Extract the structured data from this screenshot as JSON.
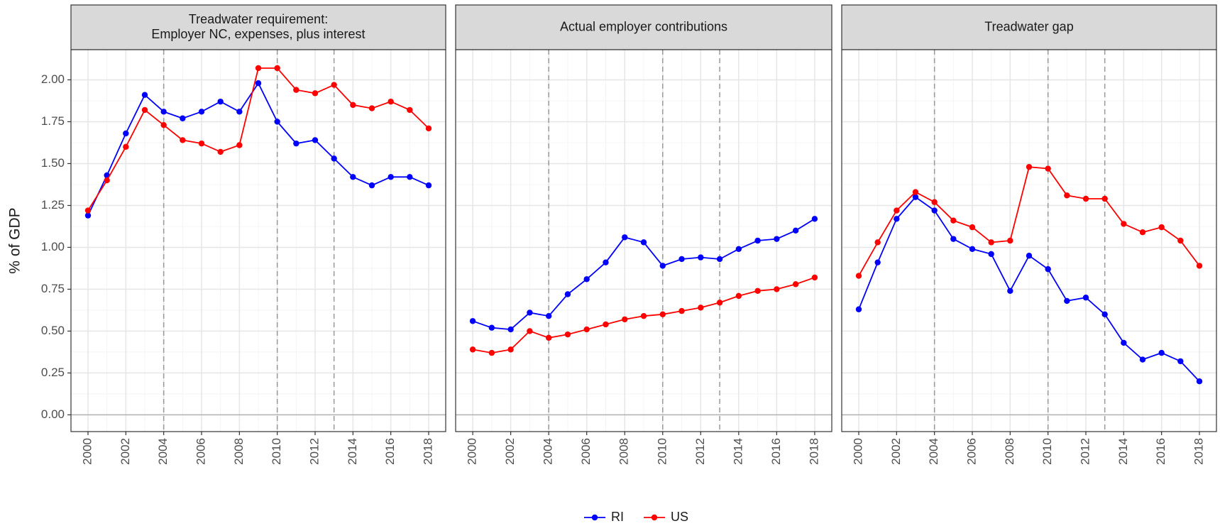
{
  "chart_data": [
    {
      "type": "line",
      "title": [
        "Treadwater requirement:",
        "Employer NC, expenses, plus interest"
      ],
      "ylabel": "% of GDP",
      "x": [
        2000,
        2001,
        2002,
        2003,
        2004,
        2005,
        2006,
        2007,
        2008,
        2009,
        2010,
        2011,
        2012,
        2013,
        2014,
        2015,
        2016,
        2017,
        2018
      ],
      "series": [
        {
          "name": "RI",
          "color": "#0000ff",
          "values": [
            1.19,
            1.43,
            1.68,
            1.91,
            1.81,
            1.77,
            1.81,
            1.87,
            1.81,
            1.98,
            1.75,
            1.62,
            1.64,
            1.53,
            1.42,
            1.37,
            1.42,
            1.42,
            1.37
          ]
        },
        {
          "name": "US",
          "color": "#ff0000",
          "values": [
            1.22,
            1.4,
            1.6,
            1.82,
            1.73,
            1.64,
            1.62,
            1.57,
            1.61,
            2.07,
            2.07,
            1.94,
            1.92,
            1.97,
            1.85,
            1.83,
            1.87,
            1.82,
            1.71
          ]
        }
      ],
      "xlim": [
        1999.1,
        2018.9
      ],
      "xticks": [
        2000,
        2002,
        2004,
        2006,
        2008,
        2010,
        2012,
        2014,
        2016,
        2018
      ],
      "ylim": [
        -0.1,
        2.18
      ],
      "yticks": [
        {
          "value": 0,
          "label": "0.00"
        },
        {
          "value": 0.25,
          "label": "0.25"
        },
        {
          "value": 0.5,
          "label": "0.50"
        },
        {
          "value": 0.75,
          "label": "0.75"
        },
        {
          "value": 1,
          "label": "1.00"
        },
        {
          "value": 1.25,
          "label": "1.25"
        },
        {
          "value": 1.5,
          "label": "1.50"
        },
        {
          "value": 1.75,
          "label": "1.75"
        },
        {
          "value": 2,
          "label": "2.00"
        }
      ],
      "grid": true,
      "hline": 0,
      "vlines": [
        2004,
        2010,
        2013
      ],
      "legend": "bottom"
    },
    {
      "type": "line",
      "title": "Actual employer contributions",
      "x": [
        2000,
        2001,
        2002,
        2003,
        2004,
        2005,
        2006,
        2007,
        2008,
        2009,
        2010,
        2011,
        2012,
        2013,
        2014,
        2015,
        2016,
        2017,
        2018
      ],
      "series": [
        {
          "name": "RI",
          "color": "#0000ff",
          "values": [
            0.56,
            0.52,
            0.51,
            0.61,
            0.59,
            0.72,
            0.81,
            0.91,
            1.06,
            1.03,
            0.89,
            0.93,
            0.94,
            0.93,
            0.99,
            1.04,
            1.05,
            1.1,
            1.17
          ]
        },
        {
          "name": "US",
          "color": "#ff0000",
          "values": [
            0.39,
            0.37,
            0.39,
            0.5,
            0.46,
            0.48,
            0.51,
            0.54,
            0.57,
            0.59,
            0.6,
            0.62,
            0.64,
            0.67,
            0.71,
            0.74,
            0.75,
            0.78,
            0.82
          ]
        }
      ],
      "xlim": [
        1999.1,
        2018.9
      ],
      "xticks": [
        2000,
        2002,
        2004,
        2006,
        2008,
        2010,
        2012,
        2014,
        2016,
        2018
      ],
      "ylim": [
        -0.1,
        2.18
      ],
      "yticks": [
        {
          "value": 0,
          "label": "0.00"
        },
        {
          "value": 0.25,
          "label": "0.25"
        },
        {
          "value": 0.5,
          "label": "0.50"
        },
        {
          "value": 0.75,
          "label": "0.75"
        },
        {
          "value": 1,
          "label": "1.00"
        },
        {
          "value": 1.25,
          "label": "1.25"
        },
        {
          "value": 1.5,
          "label": "1.50"
        },
        {
          "value": 1.75,
          "label": "1.75"
        },
        {
          "value": 2,
          "label": "2.00"
        }
      ],
      "grid": true,
      "hline": 0,
      "vlines": [
        2004,
        2010,
        2013
      ]
    },
    {
      "type": "line",
      "title": "Treadwater gap",
      "x": [
        2000,
        2001,
        2002,
        2003,
        2004,
        2005,
        2006,
        2007,
        2008,
        2009,
        2010,
        2011,
        2012,
        2013,
        2014,
        2015,
        2016,
        2017,
        2018
      ],
      "series": [
        {
          "name": "RI",
          "color": "#0000ff",
          "values": [
            0.63,
            0.91,
            1.17,
            1.3,
            1.22,
            1.05,
            0.99,
            0.96,
            0.74,
            0.95,
            0.87,
            0.68,
            0.7,
            0.6,
            0.43,
            0.33,
            0.37,
            0.32,
            0.2
          ]
        },
        {
          "name": "US",
          "color": "#ff0000",
          "values": [
            0.83,
            1.03,
            1.22,
            1.33,
            1.27,
            1.16,
            1.12,
            1.03,
            1.04,
            1.48,
            1.47,
            1.31,
            1.29,
            1.29,
            1.14,
            1.09,
            1.12,
            1.04,
            0.89
          ]
        }
      ],
      "xlim": [
        1999.1,
        2018.9
      ],
      "xticks": [
        2000,
        2002,
        2004,
        2006,
        2008,
        2010,
        2012,
        2014,
        2016,
        2018
      ],
      "ylim": [
        -0.1,
        2.18
      ],
      "yticks": [
        {
          "value": 0,
          "label": "0.00"
        },
        {
          "value": 0.25,
          "label": "0.25"
        },
        {
          "value": 0.5,
          "label": "0.50"
        },
        {
          "value": 0.75,
          "label": "0.75"
        },
        {
          "value": 1,
          "label": "1.00"
        },
        {
          "value": 1.25,
          "label": "1.25"
        },
        {
          "value": 1.5,
          "label": "1.50"
        },
        {
          "value": 1.75,
          "label": "1.75"
        },
        {
          "value": 2,
          "label": "2.00"
        }
      ],
      "grid": true,
      "hline": 0,
      "vlines": [
        2004,
        2010,
        2013
      ]
    }
  ]
}
